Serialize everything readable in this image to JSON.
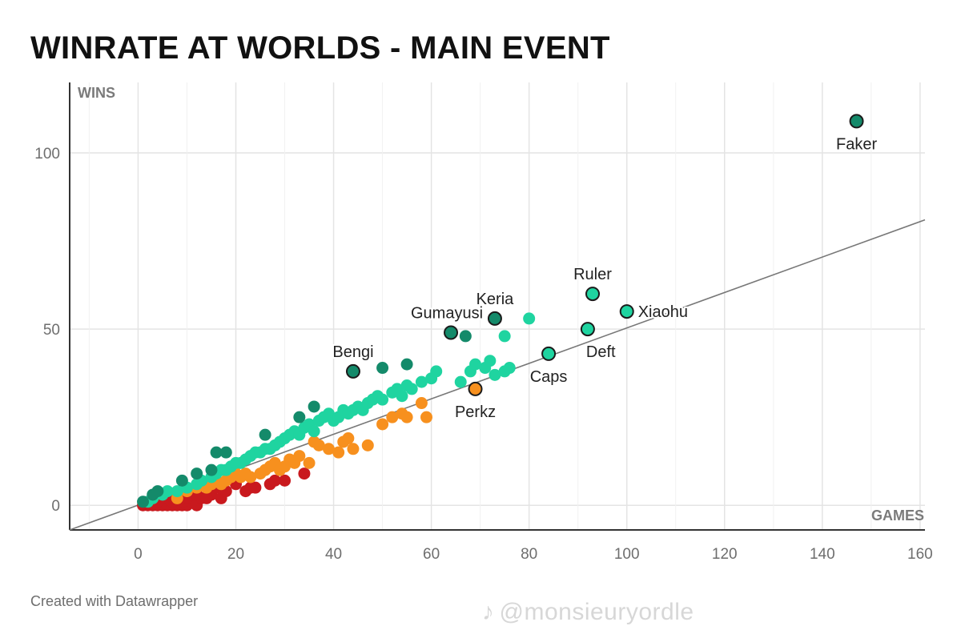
{
  "header": {
    "title": "WINRATE AT WORLDS - MAIN EVENT"
  },
  "footer": {
    "credit": "Created with Datawrapper",
    "watermark_icon": "tiktok-icon",
    "watermark": "@monsieuryordle"
  },
  "colors": {
    "teal_dark": "#148a6a",
    "teal_light": "#1fd4a0",
    "orange": "#f7901e",
    "red": "#c9191e",
    "trend": "#777777",
    "grid": "#e4e4e4"
  },
  "chart_data": {
    "type": "scatter",
    "title": "WINRATE AT WORLDS - MAIN EVENT",
    "xlabel": "GAMES",
    "ylabel": "WINS",
    "xlim": [
      -14,
      161
    ],
    "ylim": [
      -7,
      120
    ],
    "xticks": [
      0,
      20,
      40,
      60,
      80,
      100,
      120,
      140,
      160
    ],
    "yticks": [
      0,
      50,
      100
    ],
    "grid": true,
    "legend": "none",
    "trend_line": {
      "from": [
        -14,
        -7
      ],
      "to": [
        161,
        81
      ]
    },
    "series": [
      {
        "color_key": "red",
        "points": [
          [
            1,
            0
          ],
          [
            2,
            0
          ],
          [
            3,
            0
          ],
          [
            4,
            0
          ],
          [
            5,
            0
          ],
          [
            6,
            0
          ],
          [
            7,
            0
          ],
          [
            8,
            0
          ],
          [
            9,
            0
          ],
          [
            10,
            0
          ],
          [
            12,
            0
          ],
          [
            4,
            1
          ],
          [
            7,
            1
          ],
          [
            9,
            1
          ],
          [
            11,
            1
          ],
          [
            6,
            2
          ],
          [
            10,
            2
          ],
          [
            13,
            2
          ],
          [
            8,
            3
          ],
          [
            11,
            3
          ],
          [
            12,
            3
          ],
          [
            15,
            3
          ],
          [
            17,
            2
          ],
          [
            18,
            4
          ],
          [
            22,
            4
          ],
          [
            24,
            5
          ],
          [
            20,
            6
          ],
          [
            23,
            5
          ],
          [
            27,
            6
          ],
          [
            28,
            7
          ],
          [
            30,
            7
          ],
          [
            34,
            9
          ],
          [
            16,
            5
          ],
          [
            14,
            2
          ]
        ]
      },
      {
        "color_key": "orange",
        "points": [
          [
            8,
            2
          ],
          [
            10,
            4
          ],
          [
            12,
            5
          ],
          [
            14,
            5
          ],
          [
            15,
            6
          ],
          [
            16,
            7
          ],
          [
            17,
            6
          ],
          [
            18,
            7
          ],
          [
            19,
            8
          ],
          [
            20,
            9
          ],
          [
            21,
            8
          ],
          [
            22,
            9
          ],
          [
            23,
            8
          ],
          [
            25,
            9
          ],
          [
            26,
            10
          ],
          [
            27,
            11
          ],
          [
            28,
            12
          ],
          [
            29,
            10
          ],
          [
            30,
            11
          ],
          [
            31,
            13
          ],
          [
            32,
            12
          ],
          [
            33,
            14
          ],
          [
            35,
            12
          ],
          [
            36,
            18
          ],
          [
            37,
            17
          ],
          [
            39,
            16
          ],
          [
            41,
            15
          ],
          [
            42,
            18
          ],
          [
            43,
            19
          ],
          [
            44,
            16
          ],
          [
            47,
            17
          ],
          [
            50,
            23
          ],
          [
            52,
            25
          ],
          [
            54,
            26
          ],
          [
            55,
            25
          ],
          [
            58,
            29
          ],
          [
            59,
            25
          ]
        ]
      },
      {
        "color_key": "teal_light",
        "points": [
          [
            2,
            1
          ],
          [
            3,
            2
          ],
          [
            5,
            3
          ],
          [
            6,
            4
          ],
          [
            8,
            4
          ],
          [
            10,
            5
          ],
          [
            12,
            6
          ],
          [
            13,
            7
          ],
          [
            15,
            8
          ],
          [
            16,
            9
          ],
          [
            17,
            10
          ],
          [
            18,
            10
          ],
          [
            19,
            11
          ],
          [
            20,
            12
          ],
          [
            21,
            12
          ],
          [
            22,
            13
          ],
          [
            23,
            14
          ],
          [
            24,
            15
          ],
          [
            25,
            15
          ],
          [
            26,
            16
          ],
          [
            27,
            16
          ],
          [
            28,
            17
          ],
          [
            29,
            18
          ],
          [
            30,
            19
          ],
          [
            31,
            20
          ],
          [
            32,
            21
          ],
          [
            33,
            20
          ],
          [
            34,
            22
          ],
          [
            35,
            23
          ],
          [
            36,
            21
          ],
          [
            37,
            24
          ],
          [
            38,
            25
          ],
          [
            39,
            26
          ],
          [
            40,
            24
          ],
          [
            41,
            25
          ],
          [
            42,
            27
          ],
          [
            43,
            26
          ],
          [
            44,
            27
          ],
          [
            45,
            28
          ],
          [
            46,
            27
          ],
          [
            47,
            29
          ],
          [
            48,
            30
          ],
          [
            49,
            31
          ],
          [
            50,
            30
          ],
          [
            52,
            32
          ],
          [
            53,
            33
          ],
          [
            54,
            31
          ],
          [
            55,
            34
          ],
          [
            56,
            33
          ],
          [
            58,
            35
          ],
          [
            60,
            36
          ],
          [
            61,
            38
          ],
          [
            66,
            35
          ],
          [
            68,
            38
          ],
          [
            69,
            40
          ],
          [
            71,
            39
          ],
          [
            72,
            41
          ],
          [
            73,
            37
          ],
          [
            75,
            38
          ],
          [
            76,
            39
          ],
          [
            75,
            48
          ],
          [
            80,
            53
          ]
        ]
      },
      {
        "color_key": "teal_dark",
        "points": [
          [
            1,
            1
          ],
          [
            3,
            3
          ],
          [
            4,
            4
          ],
          [
            9,
            7
          ],
          [
            12,
            9
          ],
          [
            15,
            10
          ],
          [
            16,
            15
          ],
          [
            18,
            15
          ],
          [
            26,
            20
          ],
          [
            33,
            25
          ],
          [
            36,
            28
          ],
          [
            50,
            39
          ],
          [
            55,
            40
          ],
          [
            67,
            48
          ]
        ]
      }
    ],
    "highlighted": [
      {
        "label": "Faker",
        "x": 147,
        "y": 109,
        "color_key": "teal_dark",
        "label_pos": "below"
      },
      {
        "label": "Ruler",
        "x": 93,
        "y": 60,
        "color_key": "teal_light",
        "label_pos": "above"
      },
      {
        "label": "Xiaohu",
        "x": 100,
        "y": 55,
        "color_key": "teal_light",
        "label_pos": "right"
      },
      {
        "label": "Keria",
        "x": 73,
        "y": 53,
        "color_key": "teal_dark",
        "label_pos": "above"
      },
      {
        "label": "Gumayusi",
        "x": 64,
        "y": 49,
        "color_key": "teal_dark",
        "label_pos": "above-left"
      },
      {
        "label": "Deft",
        "x": 92,
        "y": 50,
        "color_key": "teal_light",
        "label_pos": "below-right"
      },
      {
        "label": "Caps",
        "x": 84,
        "y": 43,
        "color_key": "teal_light",
        "label_pos": "below"
      },
      {
        "label": "Bengi",
        "x": 44,
        "y": 38,
        "color_key": "teal_dark",
        "label_pos": "above"
      },
      {
        "label": "Perkz",
        "x": 69,
        "y": 33,
        "color_key": "orange",
        "label_pos": "below"
      }
    ]
  }
}
